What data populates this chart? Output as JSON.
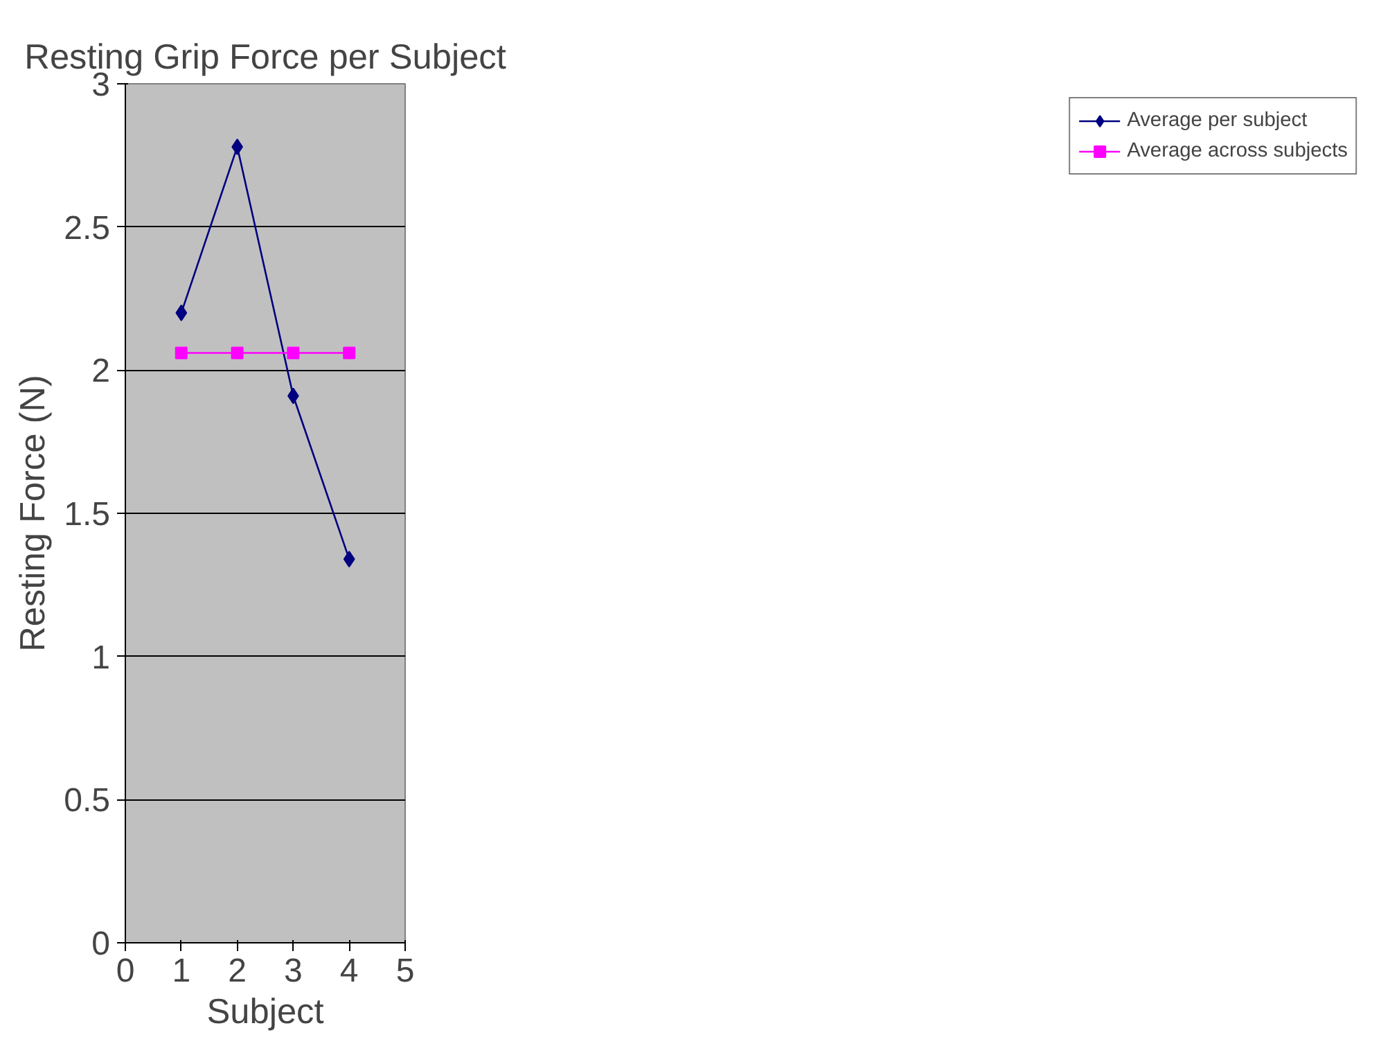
{
  "chart_data": {
    "type": "line",
    "title": "Resting Grip Force per Subject",
    "xlabel": "Subject",
    "ylabel": "Resting Force (N)",
    "x": [
      1,
      2,
      3,
      4
    ],
    "series": [
      {
        "name": "Average per subject",
        "color": "#000080",
        "values": [
          2.2,
          2.78,
          1.91,
          1.34
        ],
        "marker": "diamond"
      },
      {
        "name": "Average across subjects",
        "color": "#ff00ff",
        "values": [
          2.06,
          2.06,
          2.06,
          2.06
        ],
        "marker": "square"
      }
    ],
    "xlim": [
      0,
      5
    ],
    "xticks": [
      0,
      1,
      2,
      3,
      4,
      5
    ],
    "ylim": [
      0,
      3
    ],
    "yticks": [
      0,
      0.5,
      1,
      1.5,
      2,
      2.5,
      3
    ],
    "grid": "y",
    "legend": "right",
    "line_style": "solid"
  }
}
